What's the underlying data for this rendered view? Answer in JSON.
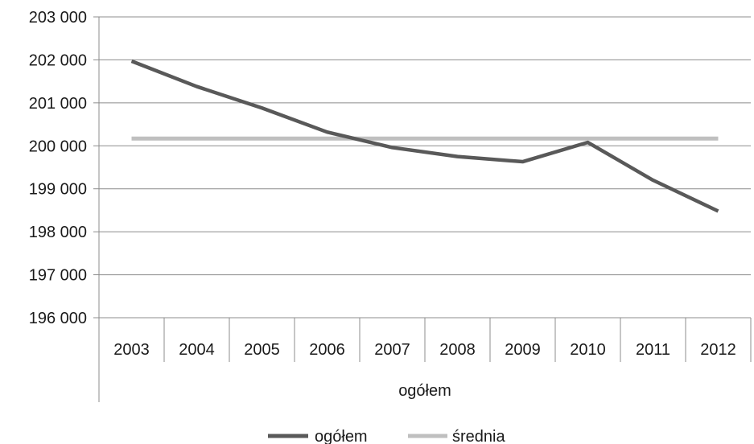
{
  "chart_data": {
    "type": "line",
    "categories": [
      "2003",
      "2004",
      "2005",
      "2006",
      "2007",
      "2008",
      "2009",
      "2010",
      "2011",
      "2012"
    ],
    "series": [
      {
        "name": "ogółem",
        "color": "#595959",
        "values": [
          201970,
          201380,
          200880,
          200320,
          199960,
          199750,
          199630,
          200080,
          199200,
          198480
        ]
      },
      {
        "name": "średnia",
        "color": "#bfbfbf",
        "values": [
          200170,
          200170,
          200170,
          200170,
          200170,
          200170,
          200170,
          200170,
          200170,
          200170
        ]
      }
    ],
    "xlabel": "ogółem",
    "ylabel": "",
    "title": "",
    "ylim": [
      196000,
      203000
    ],
    "yticks": [
      196000,
      197000,
      198000,
      199000,
      200000,
      201000,
      202000,
      203000
    ],
    "ytick_labels": [
      "196 000",
      "197 000",
      "198 000",
      "199 000",
      "200 000",
      "201 000",
      "202 000",
      "203 000"
    ],
    "grid": "horizontal",
    "legend_position": "bottom"
  }
}
